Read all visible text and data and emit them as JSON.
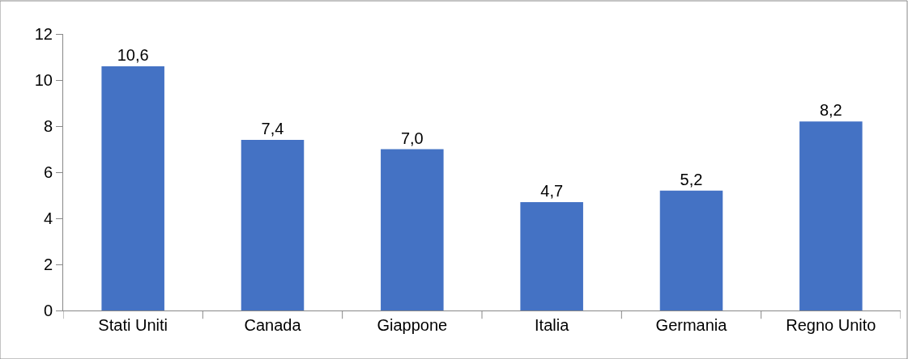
{
  "chart_data": {
    "type": "bar",
    "categories": [
      "Stati Uniti",
      "Canada",
      "Giappone",
      "Italia",
      "Germania",
      "Regno Unito"
    ],
    "values": [
      10.6,
      7.4,
      7.0,
      4.7,
      5.2,
      8.2
    ],
    "value_labels": [
      "10,6",
      "7,4",
      "7,0",
      "4,7",
      "5,2",
      "8,2"
    ],
    "color": "#4472c4",
    "ylim": [
      0,
      12
    ],
    "yticks": [
      0,
      2,
      4,
      6,
      8,
      10,
      12
    ],
    "legend": false
  }
}
